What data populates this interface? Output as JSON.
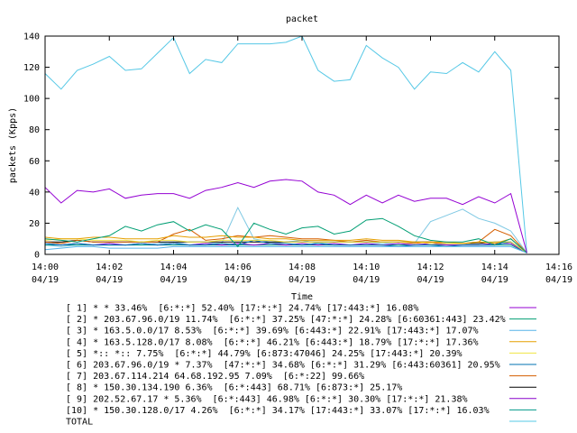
{
  "chart_data": {
    "type": "line",
    "title": "packet",
    "xlabel": "Time",
    "ylabel": "packets (Kpps)",
    "ylim": [
      0,
      140
    ],
    "yticks": [
      0,
      20,
      40,
      60,
      80,
      100,
      120,
      140
    ],
    "xlim": [
      "14:00",
      "14:16"
    ],
    "xticks": [
      {
        "time": "14:00",
        "date": "04/19"
      },
      {
        "time": "14:02",
        "date": "04/19"
      },
      {
        "time": "14:04",
        "date": "04/19"
      },
      {
        "time": "14:06",
        "date": "04/19"
      },
      {
        "time": "14:08",
        "date": "04/19"
      },
      {
        "time": "14:10",
        "date": "04/19"
      },
      {
        "time": "14:12",
        "date": "04/19"
      },
      {
        "time": "14:14",
        "date": "04/19"
      },
      {
        "time": "14:16",
        "date": "04/19"
      }
    ],
    "x": [
      "14:00:00",
      "14:00:30",
      "14:01:00",
      "14:01:30",
      "14:02:00",
      "14:02:30",
      "14:03:00",
      "14:03:30",
      "14:04:00",
      "14:04:30",
      "14:05:00",
      "14:05:30",
      "14:06:00",
      "14:06:30",
      "14:07:00",
      "14:07:30",
      "14:08:00",
      "14:08:30",
      "14:09:00",
      "14:09:30",
      "14:10:00",
      "14:10:30",
      "14:11:00",
      "14:11:30",
      "14:12:00",
      "14:12:30",
      "14:13:00",
      "14:13:30",
      "14:14:00",
      "14:14:30",
      "14:15:00"
    ],
    "grid": false,
    "legend_position": "bottom",
    "series": [
      {
        "name": "[ 1] * * 33.46%  [6:*:*] 52.40% [17:*:*] 24.74% [17:443:*] 16.08%",
        "color": "#9400d3",
        "values": [
          43,
          33,
          41,
          40,
          42,
          36,
          38,
          39,
          39,
          36,
          41,
          43,
          46,
          43,
          47,
          48,
          47,
          40,
          38,
          32,
          38,
          33,
          38,
          34,
          36,
          36,
          32,
          37,
          33,
          39,
          1
        ]
      },
      {
        "name": "[ 2] * 203.67.96.0/19 11.74%  [6:*:*] 37.25% [47:*:*] 24.28% [6:60361:443] 23.42%",
        "color": "#009e73",
        "values": [
          10,
          9,
          8,
          10,
          12,
          18,
          15,
          19,
          21,
          15,
          19,
          16,
          5,
          20,
          16,
          13,
          17,
          18,
          13,
          15,
          22,
          23,
          18,
          12,
          9,
          8,
          8,
          10,
          6,
          10,
          1
        ]
      },
      {
        "name": "[ 3] * 163.5.0.0/17 8.53%  [6:*:*] 39.69% [6:443:*] 22.91% [17:443:*] 17.07%",
        "color": "#56b4e9",
        "values": [
          3,
          4,
          5,
          5,
          4,
          4,
          4,
          4,
          5,
          5,
          5,
          5,
          5,
          5,
          5,
          5,
          5,
          5,
          5,
          5,
          5,
          5,
          5,
          5,
          5,
          5,
          5,
          5,
          5,
          5,
          1
        ]
      },
      {
        "name": "[ 4] * 163.5.128.0/17 8.08%  [6:*:*] 46.21% [6:443:*] 18.79% [17:*:*] 17.36%",
        "color": "#e69f00",
        "values": [
          11,
          10,
          10,
          11,
          11,
          10,
          10,
          10,
          12,
          11,
          11,
          12,
          11,
          11,
          10,
          10,
          9,
          9,
          9,
          9,
          10,
          9,
          9,
          8,
          8,
          8,
          7,
          8,
          7,
          10,
          1
        ]
      },
      {
        "name": "[ 5] *:: *:: 7.75%  [6:*:*] 44.79% [6:873:47046] 24.25% [17:443:*] 20.39%",
        "color": "#f0e442",
        "values": [
          9,
          10,
          10,
          9,
          9,
          9,
          8,
          9,
          9,
          8,
          8,
          9,
          9,
          9,
          9,
          8,
          8,
          8,
          8,
          8,
          8,
          8,
          8,
          8,
          7,
          7,
          7,
          8,
          8,
          8,
          1
        ]
      },
      {
        "name": "[ 6] 203.67.96.0/19 * 7.37%  [47:*:*] 34.68% [6:*:*] 31.29% [6:443:60361] 20.95%",
        "color": "#0072b2",
        "values": [
          7,
          6,
          7,
          6,
          6,
          6,
          7,
          6,
          7,
          6,
          6,
          7,
          6,
          9,
          7,
          7,
          6,
          7,
          6,
          6,
          6,
          6,
          5,
          6,
          6,
          5,
          6,
          6,
          6,
          8,
          1
        ]
      },
      {
        "name": "[ 7] 203.67.114.214 64.68.192.95 7.09%  [6:*:22] 99.66%",
        "color": "#d55e00",
        "values": [
          8,
          7,
          9,
          8,
          8,
          8,
          8,
          8,
          13,
          16,
          9,
          10,
          12,
          11,
          12,
          11,
          10,
          10,
          9,
          8,
          9,
          8,
          8,
          7,
          8,
          7,
          7,
          8,
          16,
          12,
          1
        ]
      },
      {
        "name": "[ 8] * 150.30.134.190 6.36%  [6:*:443] 68.71% [6:873:*] 25.17%",
        "color": "#000000",
        "values": [
          8,
          8,
          9,
          8,
          8,
          8,
          8,
          8,
          8,
          8,
          8,
          8,
          8,
          8,
          8,
          8,
          8,
          8,
          8,
          8,
          8,
          8,
          8,
          8,
          8,
          7,
          7,
          7,
          8,
          8,
          1
        ]
      },
      {
        "name": "[ 9] 202.52.67.17 * 5.36%  [6:*:443] 46.98% [6:*:*] 30.30% [17:*:*] 21.38%",
        "color": "#8800cc",
        "values": [
          7,
          6,
          7,
          6,
          7,
          6,
          7,
          6,
          7,
          6,
          7,
          6,
          7,
          6,
          7,
          6,
          7,
          6,
          7,
          6,
          7,
          6,
          7,
          6,
          7,
          6,
          6,
          6,
          7,
          7,
          1
        ]
      },
      {
        "name": "[10] * 150.30.128.0/17 4.26%  [6:*:*] 34.17% [17:443:*] 33.07% [17:*:*] 16.03%",
        "color": "#00998a",
        "values": [
          6,
          6,
          6,
          6,
          6,
          6,
          6,
          6,
          6,
          6,
          6,
          6,
          6,
          6,
          6,
          6,
          6,
          6,
          6,
          6,
          6,
          6,
          6,
          6,
          6,
          6,
          6,
          6,
          6,
          6,
          1
        ]
      },
      {
        "name": "TOTAL",
        "color": "#56c8e6",
        "values": [
          116,
          106,
          118,
          122,
          127,
          118,
          119,
          129,
          139,
          116,
          125,
          123,
          135,
          135,
          135,
          136,
          140,
          118,
          111,
          112,
          134,
          126,
          120,
          106,
          117,
          116,
          123,
          117,
          130,
          118,
          1
        ]
      },
      {
        "name": "",
        "color": "#7ec8e3",
        "values": [
          6,
          5,
          6,
          6,
          7,
          6,
          6,
          7,
          8,
          6,
          7,
          7,
          30,
          10,
          8,
          8,
          9,
          7,
          8,
          8,
          8,
          7,
          8,
          7,
          21,
          25,
          29,
          23,
          20,
          15,
          1
        ]
      }
    ]
  }
}
